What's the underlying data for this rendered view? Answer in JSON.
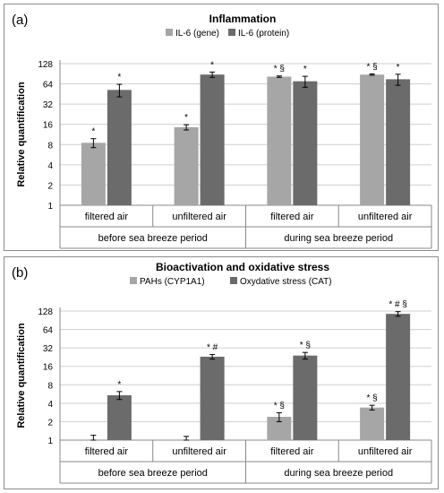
{
  "chart_data": [
    {
      "panel": "(a)",
      "type": "bar",
      "title": "Inflammation",
      "ylabel": "Relative quantification",
      "yscale": "log2",
      "yticks": [
        1,
        2,
        4,
        8,
        16,
        32,
        64,
        128
      ],
      "ylim": [
        1,
        128
      ],
      "grid": true,
      "legend": "top",
      "categories": [
        "filtered air",
        "unfiltered air",
        "filtered air",
        "unfiltered air"
      ],
      "groups": [
        {
          "label": "before sea breeze period",
          "span": [
            0,
            1
          ]
        },
        {
          "label": "during sea breeze period",
          "span": [
            2,
            3
          ]
        }
      ],
      "series": [
        {
          "name": "IL-6 (gene)",
          "color": "#a6a6a6",
          "values": [
            8.5,
            14.5,
            82,
            88
          ],
          "errors": [
            1.3,
            1.3,
            2,
            2
          ],
          "annotations": [
            "*",
            "*",
            "* §",
            "* §"
          ]
        },
        {
          "name": "IL-6 (protein)",
          "color": "#6b6b6b",
          "values": [
            52,
            88,
            70,
            75
          ],
          "errors": [
            11,
            8,
            13,
            14
          ],
          "annotations": [
            "*",
            "*",
            "*",
            "*"
          ]
        }
      ]
    },
    {
      "panel": "(b)",
      "type": "bar",
      "title": "Bioactivation and oxidative stress",
      "ylabel": "Relative quantification",
      "yscale": "log2",
      "yticks": [
        1,
        2,
        4,
        8,
        16,
        32,
        64,
        128
      ],
      "ylim": [
        1,
        128
      ],
      "grid": true,
      "legend": "top",
      "categories": [
        "filtered air",
        "unfiltered air",
        "filtered air",
        "unfiltered air"
      ],
      "groups": [
        {
          "label": "before sea breeze period",
          "span": [
            0,
            1
          ]
        },
        {
          "label": "during sea breeze period",
          "span": [
            2,
            3
          ]
        }
      ],
      "series": [
        {
          "name": "PAHs (CYP1A1)",
          "color": "#a6a6a6",
          "values": [
            1.0,
            1.0,
            2.4,
            3.4
          ],
          "errors": [
            0.2,
            0.15,
            0.4,
            0.3
          ],
          "annotations": [
            "",
            "",
            "* §",
            "* §"
          ]
        },
        {
          "name": "Oxydative stress (CAT)",
          "color": "#6b6b6b",
          "values": [
            5.4,
            23,
            24,
            115
          ],
          "errors": [
            0.8,
            2,
            3,
            10
          ],
          "annotations": [
            "*",
            "* #",
            "* §",
            "* # §"
          ]
        }
      ]
    }
  ]
}
